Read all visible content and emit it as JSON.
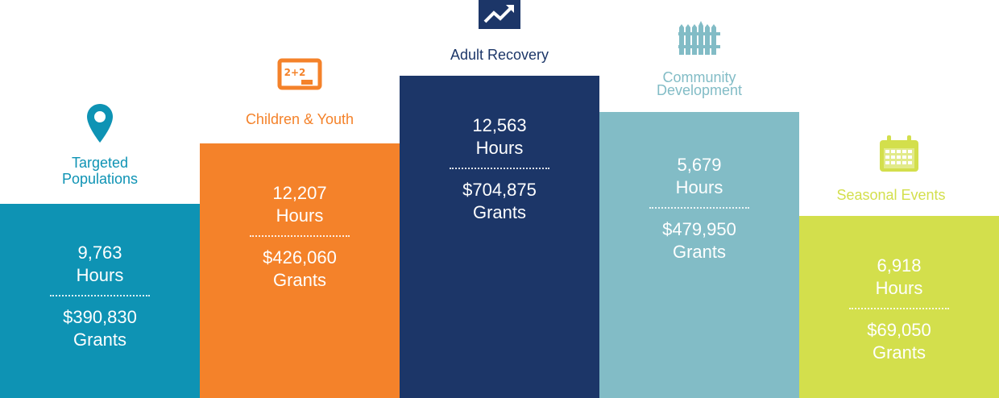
{
  "chart_data": {
    "type": "bar",
    "categories": [
      "Targeted Populations",
      "Children & Youth",
      "Adult Recovery",
      "Community Development",
      "Seasonal Events"
    ],
    "series": [
      {
        "name": "Hours",
        "values": [
          9763,
          12207,
          12563,
          5679,
          6918
        ]
      },
      {
        "name": "Grants",
        "values": [
          390830,
          426060,
          704875,
          479950,
          69050
        ]
      }
    ]
  },
  "columns": [
    {
      "label": "Targeted Populations",
      "hours": "9,763",
      "hours_unit": "Hours",
      "grants": "$390,830",
      "grants_unit": "Grants",
      "color": "#0e93b4",
      "label_color": "#0e93b4",
      "icon": "map-pin-icon"
    },
    {
      "label": "Children & Youth",
      "hours": "12,207",
      "hours_unit": "Hours",
      "grants": "$426,060",
      "grants_unit": "Grants",
      "color": "#f4822a",
      "label_color": "#f4822a",
      "icon": "chalkboard-icon"
    },
    {
      "label": "Adult Recovery",
      "hours": "12,563",
      "hours_unit": "Hours",
      "grants": "$704,875",
      "grants_unit": "Grants",
      "color": "#1c3668",
      "label_color": "#1c3668",
      "icon": "trending-up-icon"
    },
    {
      "label": "Community Development",
      "hours": "5,679",
      "hours_unit": "Hours",
      "grants": "$479,950",
      "grants_unit": "Grants",
      "color": "#82bcc6",
      "label_color": "#82bcc6",
      "icon": "fence-icon"
    },
    {
      "label": "Seasonal Events",
      "hours": "6,918",
      "hours_unit": "Hours",
      "grants": "$69,050",
      "grants_unit": "Grants",
      "color": "#d3df4c",
      "label_color": "#d3df4c",
      "icon": "calendar-icon"
    }
  ]
}
